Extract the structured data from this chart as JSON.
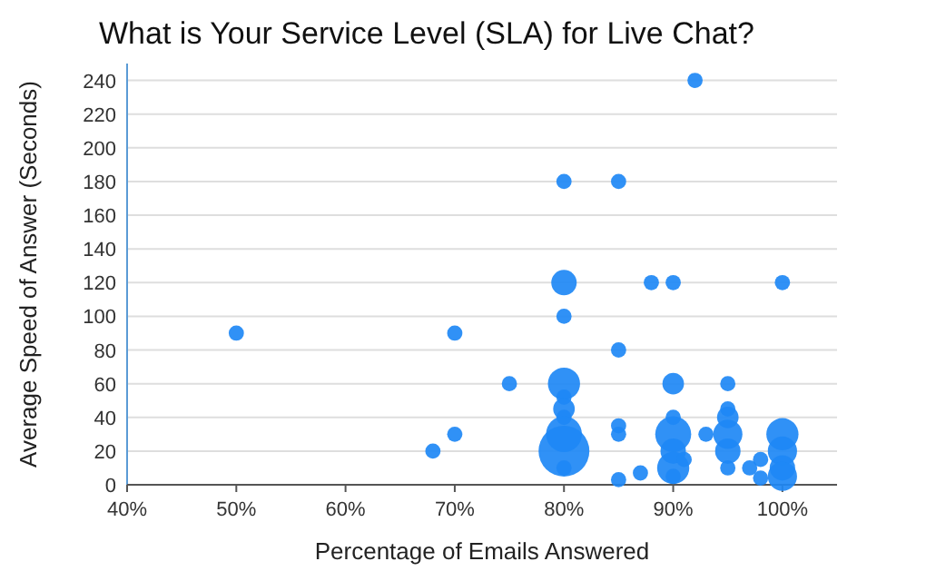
{
  "chart_data": {
    "type": "bubble",
    "title": "What is Your Service Level (SLA) for Live Chat?",
    "xlabel": "Percentage of Emails Answered",
    "ylabel": "Average Speed of Answer (Seconds)",
    "xlim": [
      40,
      105
    ],
    "xticks": [
      {
        "value": 40,
        "label": "40%"
      },
      {
        "value": 50,
        "label": "50%"
      },
      {
        "value": 60,
        "label": "60%"
      },
      {
        "value": 70,
        "label": "70%"
      },
      {
        "value": 80,
        "label": "80%"
      },
      {
        "value": 90,
        "label": "90%"
      },
      {
        "value": 100,
        "label": "100%"
      }
    ],
    "ylim": [
      0,
      250
    ],
    "yticks": [
      0,
      20,
      40,
      60,
      80,
      100,
      120,
      140,
      160,
      180,
      200,
      220,
      240
    ],
    "grid": "y",
    "series": [
      {
        "color": "#1e88f5",
        "x": [
          50,
          70,
          68,
          70,
          75,
          80,
          80,
          80,
          80,
          80,
          80,
          80,
          80,
          80,
          80,
          85,
          85,
          85,
          85,
          85,
          88,
          90,
          87,
          90,
          90,
          90,
          90,
          90,
          90,
          91,
          92,
          93,
          95,
          95,
          95,
          95,
          95,
          95,
          97,
          98,
          98,
          100,
          100,
          100,
          100,
          100
        ],
        "values": [
          90,
          90,
          20,
          30,
          60,
          180,
          120,
          100,
          60,
          52,
          45,
          40,
          30,
          20,
          10,
          180,
          80,
          35,
          30,
          3,
          120,
          120,
          7,
          60,
          40,
          30,
          20,
          10,
          5,
          15,
          240,
          30,
          60,
          45,
          40,
          30,
          20,
          10,
          10,
          15,
          4,
          120,
          30,
          20,
          10,
          5
        ],
        "sizes": [
          0.09,
          0.09,
          0.09,
          0.09,
          0.09,
          0.09,
          0.25,
          0.09,
          0.4,
          0.09,
          0.18,
          0.09,
          0.5,
          1,
          0.09,
          0.09,
          0.09,
          0.09,
          0.09,
          0.09,
          0.09,
          0.09,
          0.09,
          0.18,
          0.09,
          0.5,
          0.25,
          0.4,
          0.09,
          0.09,
          0.09,
          0.09,
          0.09,
          0.09,
          0.18,
          0.33,
          0.25,
          0.09,
          0.09,
          0.09,
          0.09,
          0.09,
          0.4,
          0.33,
          0.25,
          0.33
        ]
      }
    ]
  }
}
